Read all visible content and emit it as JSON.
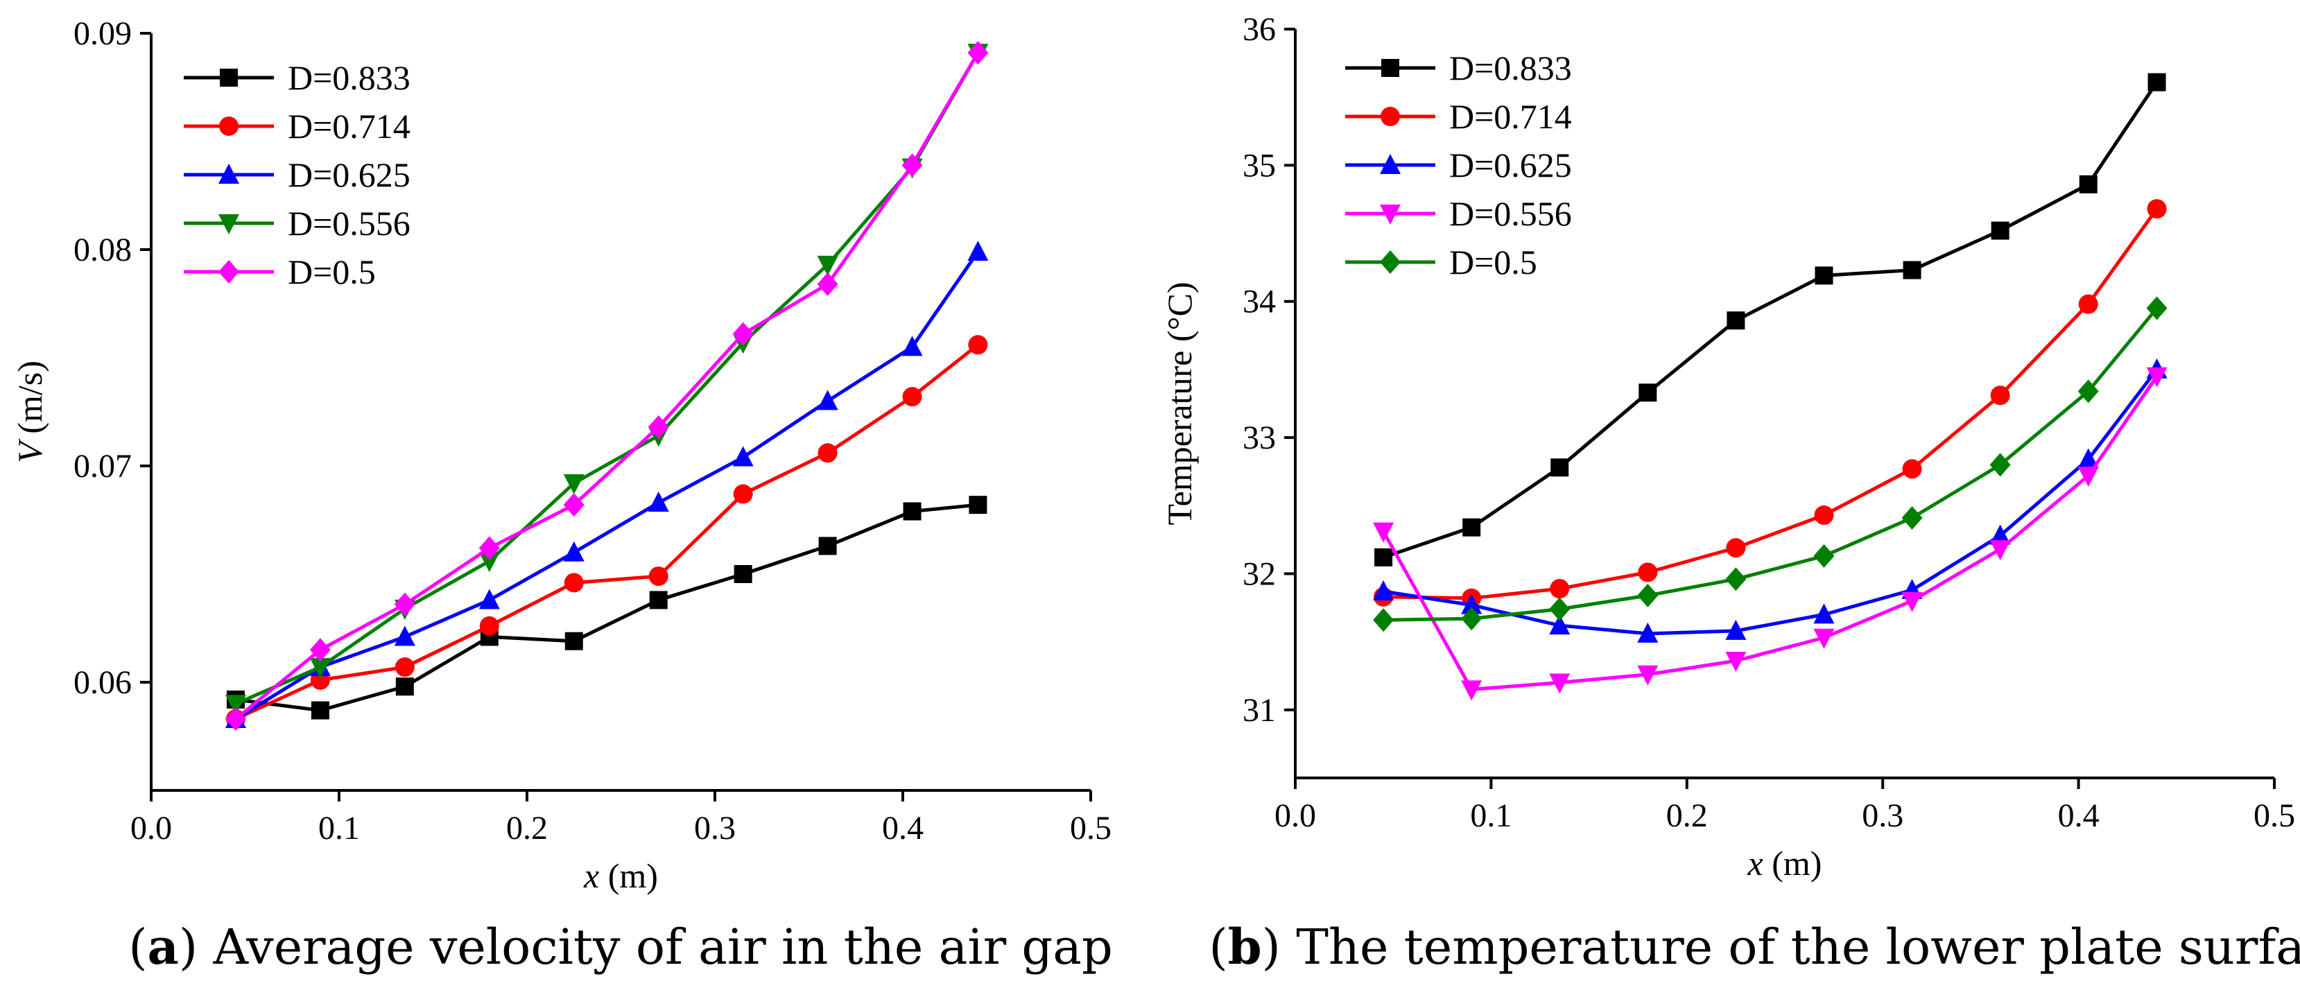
{
  "chart_data": [
    {
      "type": "line",
      "panel": "a",
      "caption_letter": "a",
      "caption_text": "Average velocity of air in the air gap",
      "xlabel_var": "x",
      "xlabel_unit": "(m)",
      "ylabel_var": "V",
      "ylabel_unit": "(m/s)",
      "xlim": [
        0.0,
        0.5
      ],
      "ylim": [
        0.055,
        0.09
      ],
      "xticks": [
        0.0,
        0.1,
        0.2,
        0.3,
        0.4,
        0.5
      ],
      "xtick_labels": [
        "0.0",
        "0.1",
        "0.2",
        "0.3",
        "0.4",
        "0.5"
      ],
      "yticks": [
        0.06,
        0.07,
        0.08,
        0.09
      ],
      "ytick_labels": [
        "0.06",
        "0.07",
        "0.08",
        "0.09"
      ],
      "legend_position": "top-left",
      "x": [
        0.045,
        0.09,
        0.135,
        0.18,
        0.225,
        0.27,
        0.315,
        0.36,
        0.405,
        0.44
      ],
      "series": [
        {
          "name": "D=0.833",
          "color": "#000000",
          "marker": "square",
          "values": [
            0.0592,
            0.0587,
            0.0598,
            0.0621,
            0.0619,
            0.0638,
            0.065,
            0.0663,
            0.0679,
            0.0682
          ]
        },
        {
          "name": "D=0.714",
          "color": "#ff0000",
          "marker": "circle",
          "values": [
            0.0583,
            0.0601,
            0.0607,
            0.0626,
            0.0646,
            0.0649,
            0.0687,
            0.0706,
            0.0732,
            0.0756
          ]
        },
        {
          "name": "D=0.625",
          "color": "#0000ff",
          "marker": "triangle-up",
          "values": [
            0.0583,
            0.0607,
            0.0621,
            0.0638,
            0.066,
            0.0683,
            0.0704,
            0.073,
            0.0755,
            0.0799
          ]
        },
        {
          "name": "D=0.556",
          "color": "#008000",
          "marker": "triangle-down",
          "values": [
            0.059,
            0.0607,
            0.0634,
            0.0656,
            0.0692,
            0.0714,
            0.0757,
            0.0793,
            0.0838,
            0.0891
          ]
        },
        {
          "name": "D=0.5",
          "color": "#ff00ff",
          "marker": "diamond",
          "values": [
            0.0583,
            0.0615,
            0.0636,
            0.0662,
            0.0682,
            0.0718,
            0.0761,
            0.0784,
            0.0839,
            0.0891
          ]
        }
      ]
    },
    {
      "type": "line",
      "panel": "b",
      "caption_letter": "b",
      "caption_text": "The temperature of the lower plate surface",
      "xlabel_var": "x",
      "xlabel_unit": "(m)",
      "ylabel_var": "",
      "ylabel_unit": "Temperature (°C)",
      "xlim": [
        0.0,
        0.5
      ],
      "ylim": [
        30.5,
        36.0
      ],
      "xticks": [
        0.0,
        0.1,
        0.2,
        0.3,
        0.4,
        0.5
      ],
      "xtick_labels": [
        "0.0",
        "0.1",
        "0.2",
        "0.3",
        "0.4",
        "0.5"
      ],
      "yticks": [
        31,
        32,
        33,
        34,
        35,
        36
      ],
      "ytick_labels": [
        "31",
        "32",
        "33",
        "34",
        "35",
        "36"
      ],
      "legend_position": "top-left",
      "x": [
        0.045,
        0.09,
        0.135,
        0.18,
        0.225,
        0.27,
        0.315,
        0.36,
        0.405,
        0.44
      ],
      "series": [
        {
          "name": "D=0.833",
          "color": "#000000",
          "marker": "square",
          "values": [
            32.12,
            32.34,
            32.78,
            33.33,
            33.86,
            34.19,
            34.23,
            34.52,
            34.86,
            35.61
          ]
        },
        {
          "name": "D=0.714",
          "color": "#ff0000",
          "marker": "circle",
          "values": [
            31.83,
            31.82,
            31.89,
            32.01,
            32.19,
            32.43,
            32.77,
            33.31,
            33.98,
            34.68
          ]
        },
        {
          "name": "D=0.625",
          "color": "#0000ff",
          "marker": "triangle-up",
          "values": [
            31.87,
            31.77,
            31.62,
            31.56,
            31.58,
            31.7,
            31.88,
            32.28,
            32.84,
            33.5
          ]
        },
        {
          "name": "D=0.556",
          "color": "#ff00ff",
          "marker": "triangle-down",
          "values": [
            32.31,
            31.15,
            31.2,
            31.26,
            31.36,
            31.53,
            31.8,
            32.18,
            32.72,
            33.45
          ]
        },
        {
          "name": "D=0.5",
          "color": "#008000",
          "marker": "diamond",
          "values": [
            31.66,
            31.67,
            31.74,
            31.84,
            31.96,
            32.13,
            32.41,
            32.8,
            33.34,
            33.95
          ]
        }
      ]
    }
  ]
}
